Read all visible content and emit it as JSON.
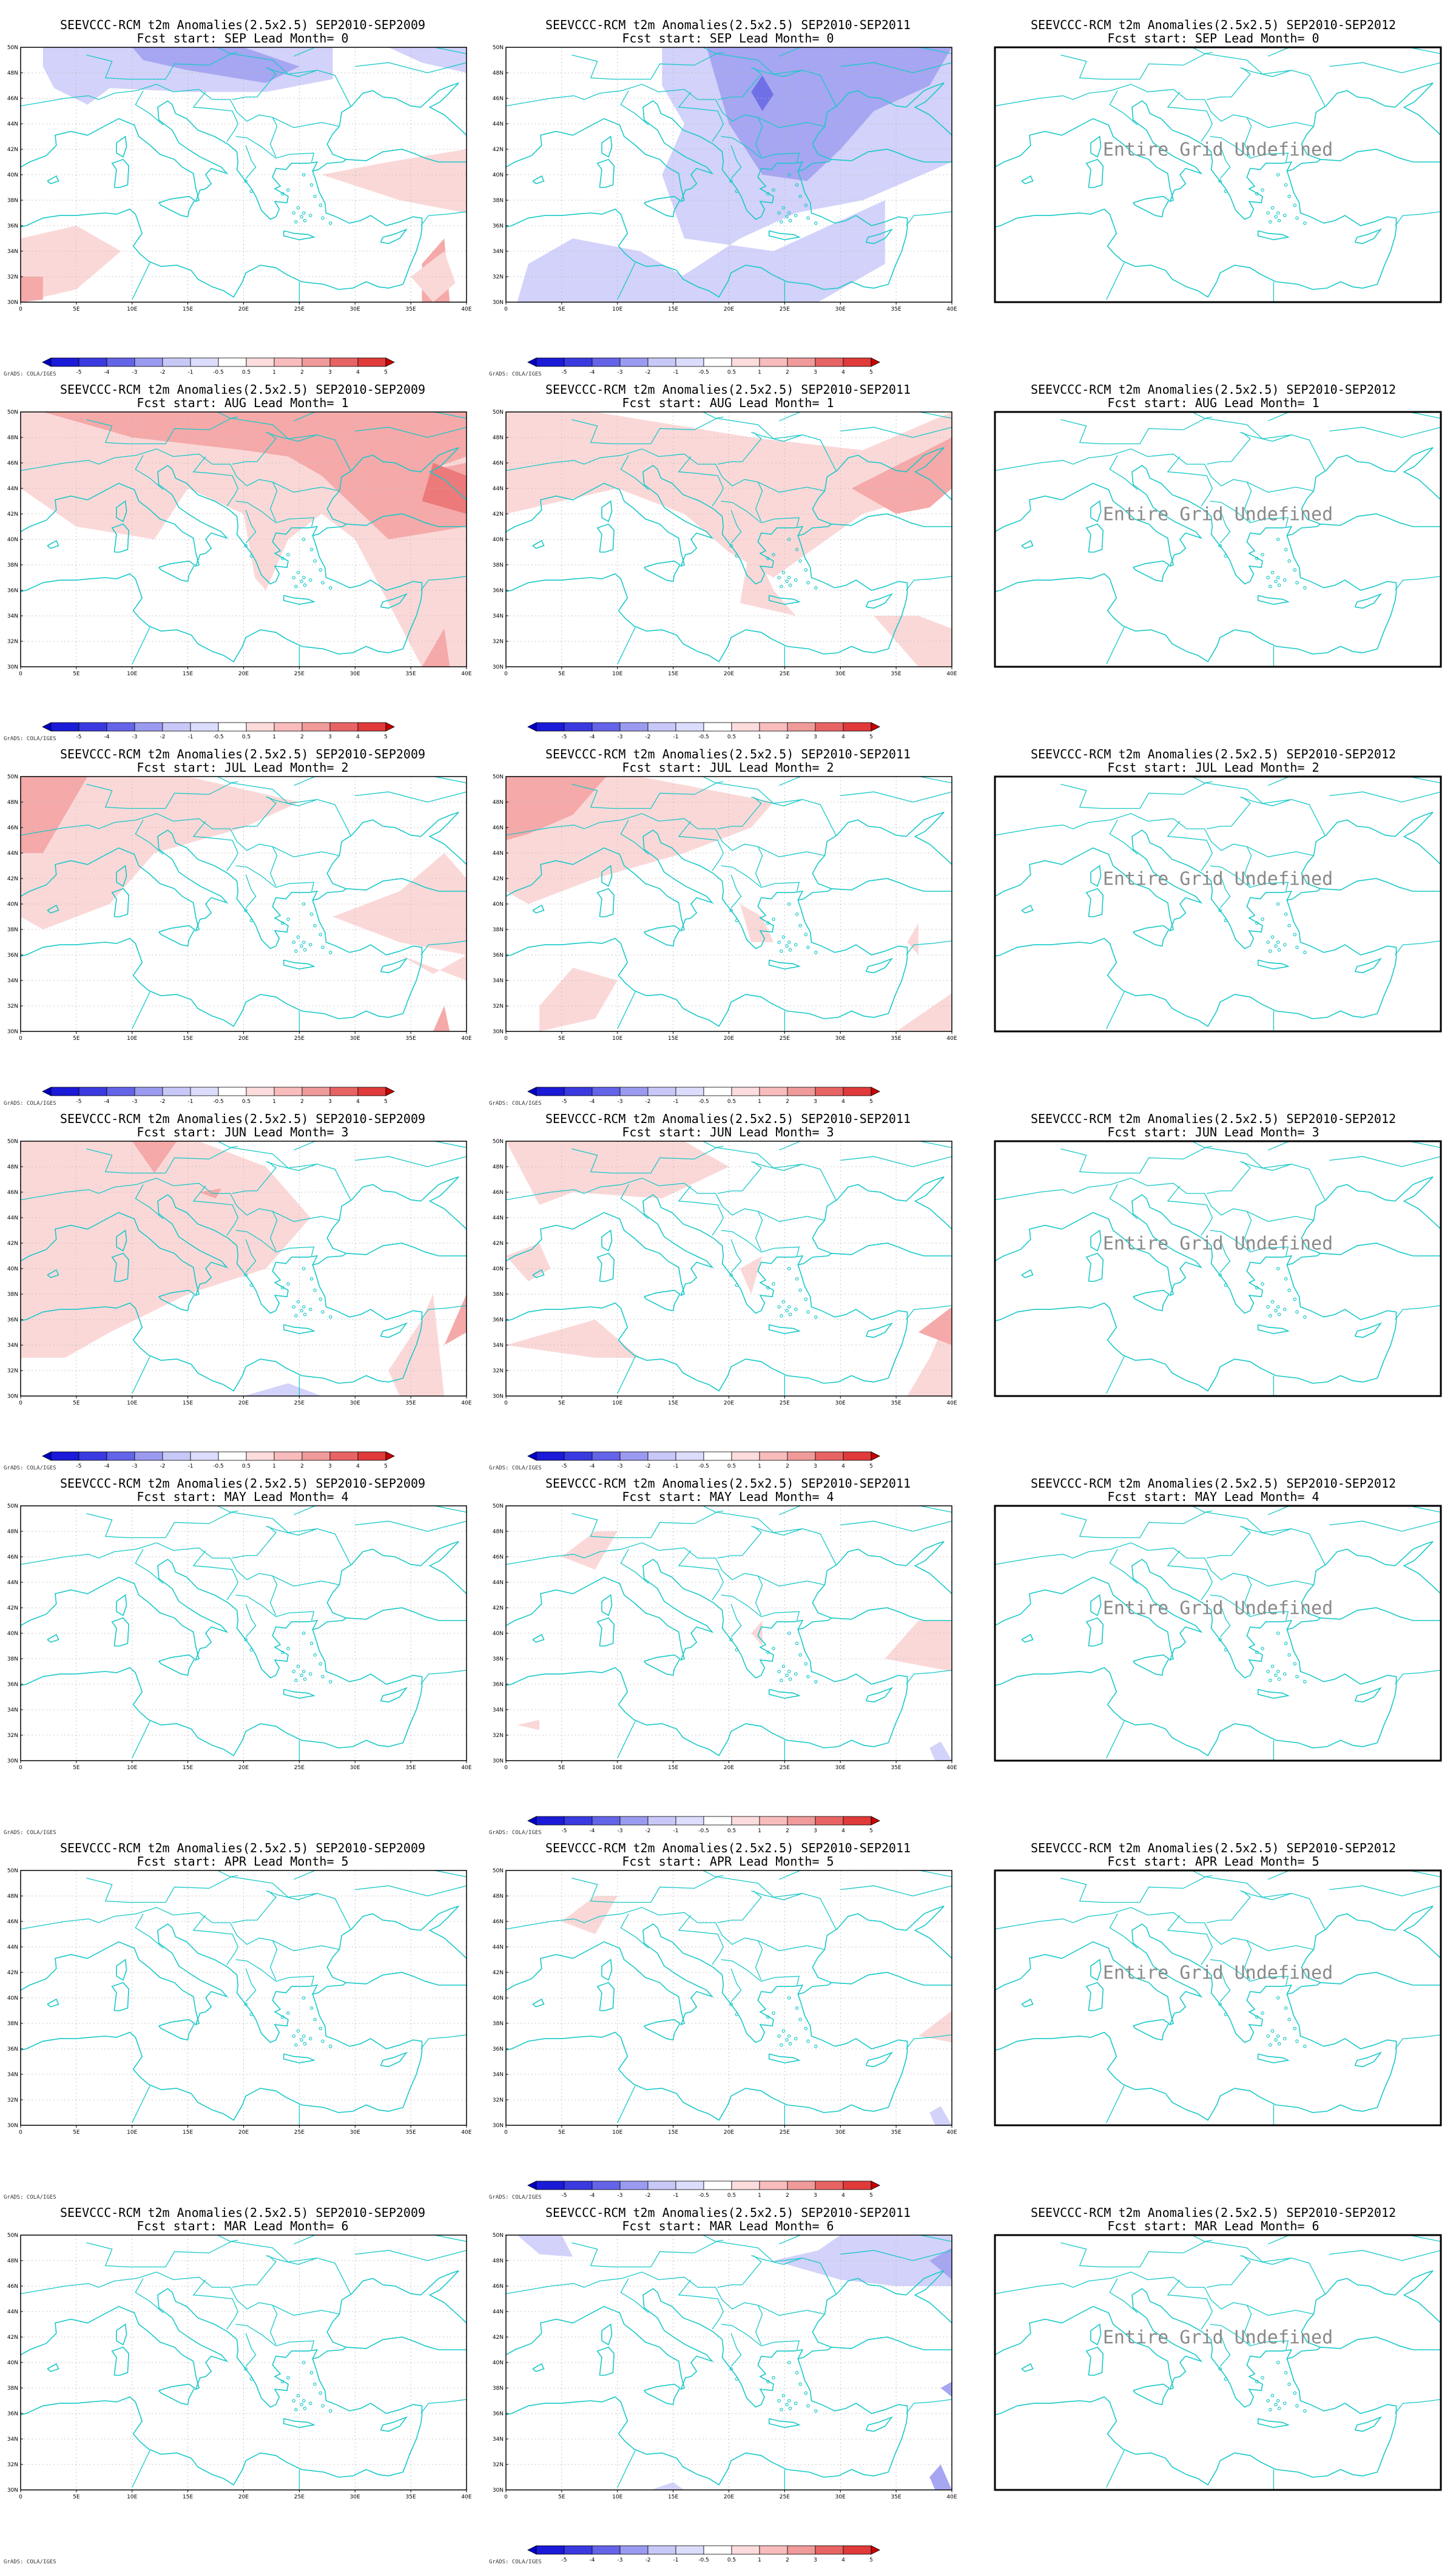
{
  "columns": [
    {
      "period": "SEP2010-SEP2009",
      "has_data": true
    },
    {
      "period": "SEP2010-SEP2011",
      "has_data": true
    },
    {
      "period": "SEP2010-SEP2012",
      "has_data": false
    }
  ],
  "title_prefix": "SEEVCCC-RCM t2m Anomalies(2.5x2.5)",
  "rows": [
    {
      "start": "SEP",
      "lead": "0"
    },
    {
      "start": "AUG",
      "lead": "1"
    },
    {
      "start": "JUL",
      "lead": "2"
    },
    {
      "start": "JUN",
      "lead": "3"
    },
    {
      "start": "MAY",
      "lead": "4"
    },
    {
      "start": "APR",
      "lead": "5"
    },
    {
      "start": "MAR",
      "lead": "6"
    }
  ],
  "panels": [
    {
      "title1": "SEEVCCC-RCM t2m Anomalies(2.5x2.5) SEP2010-SEP2009",
      "title2": "Fcst start: SEP  Lead Month= 0",
      "undefined_text": "",
      "colorbar": true,
      "grads_label": "GrADS: COLA/IGES"
    },
    {
      "title1": "SEEVCCC-RCM t2m Anomalies(2.5x2.5) SEP2010-SEP2011",
      "title2": "Fcst start: SEP  Lead Month= 0",
      "undefined_text": "",
      "colorbar": true,
      "grads_label": "GrADS: COLA/IGES"
    },
    {
      "title1": "SEEVCCC-RCM t2m Anomalies(2.5x2.5) SEP2010-SEP2012",
      "title2": "Fcst start: SEP  Lead Month= 0",
      "undefined_text": "Entire Grid Undefined",
      "colorbar": false,
      "grads_label": ""
    },
    {
      "title1": "SEEVCCC-RCM t2m Anomalies(2.5x2.5) SEP2010-SEP2009",
      "title2": "Fcst start: AUG  Lead Month= 1",
      "undefined_text": "",
      "colorbar": true,
      "grads_label": "GrADS: COLA/IGES"
    },
    {
      "title1": "SEEVCCC-RCM t2m Anomalies(2.5x2.5) SEP2010-SEP2011",
      "title2": "Fcst start: AUG  Lead Month= 1",
      "undefined_text": "",
      "colorbar": true,
      "grads_label": ""
    },
    {
      "title1": "SEEVCCC-RCM t2m Anomalies(2.5x2.5) SEP2010-SEP2012",
      "title2": "Fcst start: AUG  Lead Month= 1",
      "undefined_text": "Entire Grid Undefined",
      "colorbar": false,
      "grads_label": ""
    },
    {
      "title1": "SEEVCCC-RCM t2m Anomalies(2.5x2.5) SEP2010-SEP2009",
      "title2": "Fcst start: JUL  Lead Month= 2",
      "undefined_text": "",
      "colorbar": true,
      "grads_label": "GrADS: COLA/IGES"
    },
    {
      "title1": "SEEVCCC-RCM t2m Anomalies(2.5x2.5) SEP2010-SEP2011",
      "title2": "Fcst start: JUL  Lead Month= 2",
      "undefined_text": "",
      "colorbar": true,
      "grads_label": "GrADS: COLA/IGES"
    },
    {
      "title1": "SEEVCCC-RCM t2m Anomalies(2.5x2.5) SEP2010-SEP2012",
      "title2": "Fcst start: JUL  Lead Month= 2",
      "undefined_text": "Entire Grid Undefined",
      "colorbar": false,
      "grads_label": ""
    },
    {
      "title1": "SEEVCCC-RCM t2m Anomalies(2.5x2.5) SEP2010-SEP2009",
      "title2": "Fcst start: JUN  Lead Month= 3",
      "undefined_text": "",
      "colorbar": true,
      "grads_label": "GrADS: COLA/IGES"
    },
    {
      "title1": "SEEVCCC-RCM t2m Anomalies(2.5x2.5) SEP2010-SEP2011",
      "title2": "Fcst start: JUN  Lead Month= 3",
      "undefined_text": "",
      "colorbar": true,
      "grads_label": "GrADS: COLA/IGES"
    },
    {
      "title1": "SEEVCCC-RCM t2m Anomalies(2.5x2.5) SEP2010-SEP2012",
      "title2": "Fcst start: JUN  Lead Month= 3",
      "undefined_text": "Entire Grid Undefined",
      "colorbar": false,
      "grads_label": ""
    },
    {
      "title1": "SEEVCCC-RCM t2m Anomalies(2.5x2.5) SEP2010-SEP2009",
      "title2": "Fcst start: MAY  Lead Month= 4",
      "undefined_text": "",
      "colorbar": false,
      "grads_label": "GrADS: COLA/IGES"
    },
    {
      "title1": "SEEVCCC-RCM t2m Anomalies(2.5x2.5) SEP2010-SEP2011",
      "title2": "Fcst start: MAY  Lead Month= 4",
      "undefined_text": "",
      "colorbar": true,
      "grads_label": "GrADS: COLA/IGES"
    },
    {
      "title1": "SEEVCCC-RCM t2m Anomalies(2.5x2.5) SEP2010-SEP2012",
      "title2": "Fcst start: MAY  Lead Month= 4",
      "undefined_text": "Entire Grid Undefined",
      "colorbar": false,
      "grads_label": ""
    },
    {
      "title1": "SEEVCCC-RCM t2m Anomalies(2.5x2.5) SEP2010-SEP2009",
      "title2": "Fcst start: APR  Lead Month= 5",
      "undefined_text": "",
      "colorbar": false,
      "grads_label": "GrADS: COLA/IGES"
    },
    {
      "title1": "SEEVCCC-RCM t2m Anomalies(2.5x2.5) SEP2010-SEP2011",
      "title2": "Fcst start: APR  Lead Month= 5",
      "undefined_text": "",
      "colorbar": true,
      "grads_label": "GrADS: COLA/IGES"
    },
    {
      "title1": "SEEVCCC-RCM t2m Anomalies(2.5x2.5) SEP2010-SEP2012",
      "title2": "Fcst start: APR  Lead Month= 5",
      "undefined_text": "Entire Grid Undefined",
      "colorbar": false,
      "grads_label": ""
    },
    {
      "title1": "SEEVCCC-RCM t2m Anomalies(2.5x2.5) SEP2010-SEP2009",
      "title2": "Fcst start: MAR  Lead Month= 6",
      "undefined_text": "",
      "colorbar": false,
      "grads_label": "GrADS: COLA/IGES"
    },
    {
      "title1": "SEEVCCC-RCM t2m Anomalies(2.5x2.5) SEP2010-SEP2011",
      "title2": "Fcst start: MAR  Lead Month= 6",
      "undefined_text": "",
      "colorbar": true,
      "grads_label": "GrADS: COLA/IGES"
    },
    {
      "title1": "SEEVCCC-RCM t2m Anomalies(2.5x2.5) SEP2010-SEP2012",
      "title2": "Fcst start: MAR  Lead Month= 6",
      "undefined_text": "Entire Grid Undefined",
      "colorbar": false,
      "grads_label": ""
    }
  ],
  "map": {
    "lon_range": [
      0,
      40
    ],
    "lat_range": [
      30,
      50
    ],
    "lon_ticks": [
      "0",
      "5E",
      "10E",
      "15E",
      "20E",
      "25E",
      "30E",
      "35E",
      "40E"
    ],
    "lat_ticks": [
      "30N",
      "32N",
      "34N",
      "36N",
      "38N",
      "40N",
      "42N",
      "44N",
      "46N",
      "48N",
      "50N"
    ],
    "coastline_color": "#19c8c8",
    "grid_lines": true
  },
  "colorbar": {
    "labels": [
      "-5",
      "-4",
      "-3",
      "-2",
      "-1",
      "-0.5",
      "0.5",
      "1",
      "2",
      "3",
      "4",
      "5"
    ],
    "colors": [
      "#0000c8",
      "#1a1ad8",
      "#3a3ae0",
      "#6464e8",
      "#9a9af0",
      "#c8c8f8",
      "#dcdcfc",
      "#ffffff",
      "#fcdcdc",
      "#f8bcbc",
      "#f09a9a",
      "#e86464",
      "#e03a3a",
      "#c80000"
    ]
  },
  "colors": {
    "cold_light": "#d2d2fa",
    "cold_mid": "#a6a6f2",
    "cold_strong": "#7070e6",
    "warm_light": "#fbd8d8",
    "warm_mid": "#f5a9a9",
    "warm_strong": "#ec7a7a"
  }
}
